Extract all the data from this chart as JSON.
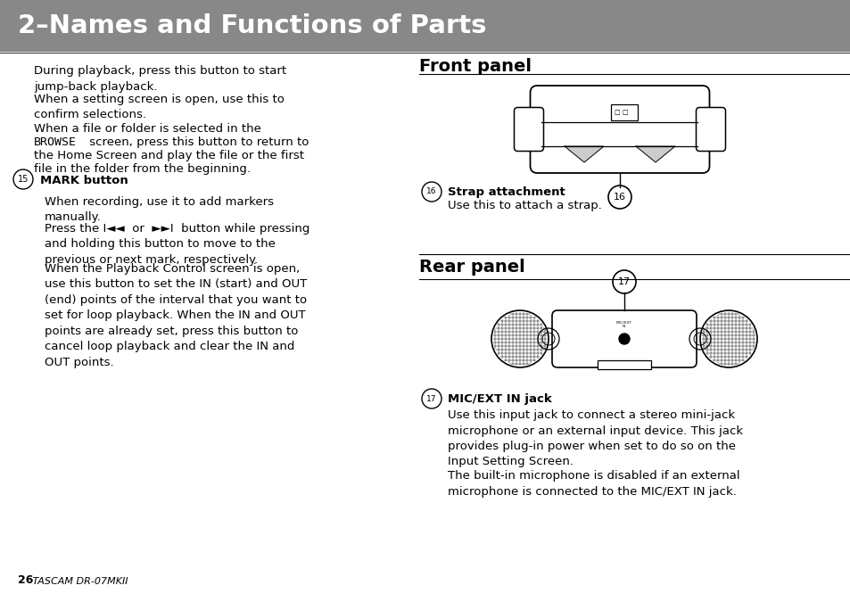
{
  "title": "2–Names and Functions of Parts",
  "title_bg": "#888888",
  "title_color": "#ffffff",
  "bg_color": "#ffffff",
  "text_color": "#000000",
  "front_panel_title": "Front panel",
  "rear_panel_title": "Rear panel",
  "item16_label": "Strap attachment",
  "item16_desc": "Use this to attach a strap.",
  "item17_label": "MIC/EXT IN jack",
  "item17_desc1": "Use this input jack to connect a stereo mini-jack\nmicrophone or an external input device. This jack\nprovides plug-in power when set to do so on the\nInput Setting Screen.",
  "item17_desc2": "The built-in microphone is disabled if an external\nmicrophone is connected to the MIC/EXT IN jack.",
  "left_para1": "During playback, press this button to start\njump-back playback.",
  "left_para2": "When a setting screen is open, use this to\nconfirm selections.",
  "left_para3": "When a file or folder is selected in the\nBROWSE screen, press this button to return to\nthe Home Screen and play the file or the first\nfile in the folder from the beginning.",
  "left_item15_label": "MARK button",
  "left_para4": "When recording, use it to add markers\nmanually.",
  "left_para5": "Press the I◄◄  or  ►►I  button while pressing\nand holding this button to move to the\nprevious or next mark, respectively.",
  "left_para6": "When the Playback Control screen is open,\nuse this button to set the IN (start) and OUT\n(end) points of the interval that you want to\nset for loop playback. When the IN and OUT\npoints are already set, press this button to\ncancel loop playback and clear the IN and\nOUT points.",
  "footer_bold": "26",
  "footer_normal": " TASCAM DR-07MKII"
}
